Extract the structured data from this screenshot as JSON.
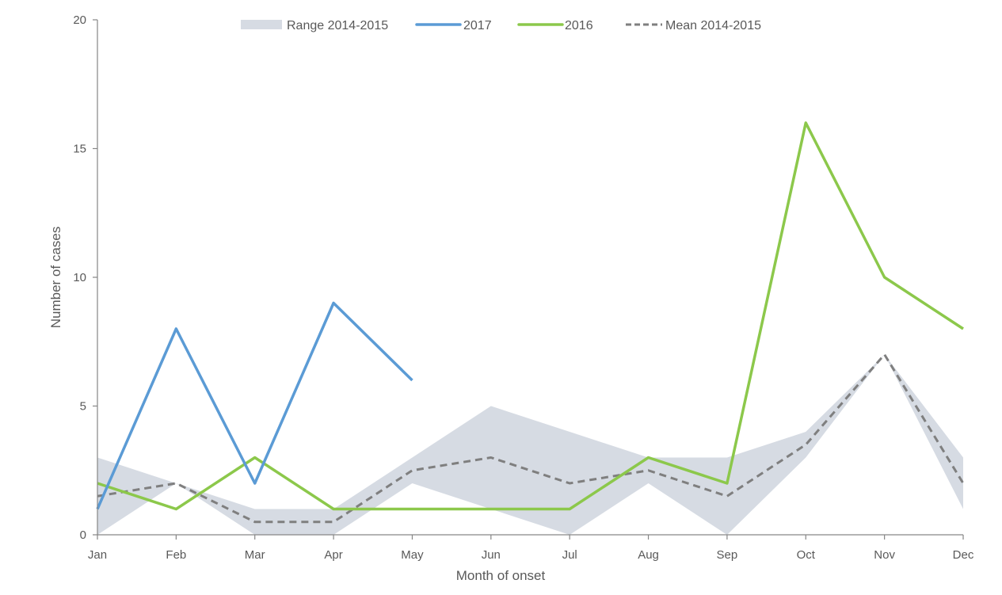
{
  "chart_data": {
    "type": "line",
    "title": "",
    "xlabel": "Month of onset",
    "ylabel": "Number of cases",
    "ylim": [
      0,
      20
    ],
    "yticks": [
      0,
      5,
      10,
      15,
      20
    ],
    "grid": false,
    "legend_position": "top",
    "categories": [
      "Jan",
      "Feb",
      "Mar",
      "Apr",
      "May",
      "Jun",
      "Jul",
      "Aug",
      "Sep",
      "Oct",
      "Nov",
      "Dec"
    ],
    "series": [
      {
        "name": "Range 2014-2015",
        "kind": "band",
        "color": "#d6dbe3",
        "lower": [
          0,
          2,
          0,
          0,
          2,
          1,
          0,
          2,
          0,
          3,
          7,
          1
        ],
        "upper": [
          3,
          2,
          1,
          1,
          3,
          5,
          4,
          3,
          3,
          4,
          7,
          3
        ]
      },
      {
        "name": "2017",
        "kind": "line",
        "color": "#5b9bd5",
        "values": [
          1,
          8,
          2,
          9,
          6
        ]
      },
      {
        "name": "2016",
        "kind": "line",
        "color": "#8cc84b",
        "values": [
          2,
          1,
          3,
          1,
          1,
          1,
          1,
          3,
          2,
          16,
          10,
          8
        ]
      },
      {
        "name": "Mean 2014-2015",
        "kind": "dashed",
        "color": "#7f7f7f",
        "values": [
          1.5,
          2,
          0.5,
          0.5,
          2.5,
          3,
          2,
          2.5,
          1.5,
          3.5,
          7,
          2
        ]
      }
    ]
  },
  "legend": {
    "items": [
      {
        "label": "Range 2014-2015",
        "style": "band",
        "color": "#d6dbe3"
      },
      {
        "label": "2017",
        "style": "line",
        "color": "#5b9bd5"
      },
      {
        "label": "2016",
        "style": "line",
        "color": "#8cc84b"
      },
      {
        "label": "Mean 2014-2015",
        "style": "dashed",
        "color": "#7f7f7f"
      }
    ]
  },
  "axes": {
    "x_title": "Month of onset",
    "y_title": "Number of cases",
    "axis_color": "#868686"
  }
}
